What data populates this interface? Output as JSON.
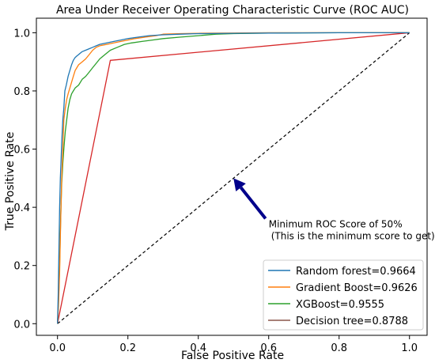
{
  "chart_data": {
    "type": "line",
    "title": "Area Under Receiver Operating Characteristic Curve (ROC AUC)",
    "xlabel": "False Positive Rate",
    "ylabel": "True Positive Rate",
    "xlim": [
      -0.06,
      1.05
    ],
    "ylim": [
      -0.04,
      1.05
    ],
    "xticks": [
      0.0,
      0.2,
      0.4,
      0.6,
      0.8,
      1.0
    ],
    "xtick_labels": [
      "0.0",
      "0.2",
      "0.4",
      "0.6",
      "0.8",
      "1.0"
    ],
    "yticks": [
      0.0,
      0.2,
      0.4,
      0.6,
      0.8,
      1.0
    ],
    "ytick_labels": [
      "0.0",
      "0.2",
      "0.4",
      "0.6",
      "0.8",
      "1.0"
    ],
    "grid": false,
    "legend_position": "bottom-right",
    "series": [
      {
        "name": "Random forest=0.9664",
        "color": "#1f77b4",
        "x": [
          0.0,
          0.002,
          0.004,
          0.006,
          0.008,
          0.01,
          0.012,
          0.015,
          0.018,
          0.021,
          0.025,
          0.03,
          0.035,
          0.04,
          0.045,
          0.05,
          0.055,
          0.06,
          0.065,
          0.07,
          0.08,
          0.09,
          0.1,
          0.11,
          0.12,
          0.14,
          0.16,
          0.18,
          0.2,
          0.23,
          0.26,
          0.3,
          0.35,
          0.4,
          0.5,
          0.6,
          0.8,
          1.0
        ],
        "y": [
          0.0,
          0.1,
          0.25,
          0.4,
          0.5,
          0.56,
          0.62,
          0.7,
          0.74,
          0.8,
          0.82,
          0.85,
          0.87,
          0.89,
          0.905,
          0.915,
          0.92,
          0.925,
          0.93,
          0.935,
          0.94,
          0.945,
          0.95,
          0.955,
          0.96,
          0.965,
          0.97,
          0.975,
          0.98,
          0.985,
          0.99,
          0.993,
          0.995,
          0.997,
          0.998,
          0.999,
          1.0,
          1.0
        ]
      },
      {
        "name": "Gradient Boost=0.9626",
        "color": "#ff7f0e",
        "x": [
          0.0,
          0.003,
          0.006,
          0.009,
          0.012,
          0.015,
          0.018,
          0.022,
          0.026,
          0.03,
          0.035,
          0.04,
          0.045,
          0.05,
          0.055,
          0.06,
          0.07,
          0.08,
          0.09,
          0.1,
          0.11,
          0.12,
          0.14,
          0.16,
          0.18,
          0.2,
          0.22,
          0.25,
          0.28,
          0.3,
          0.35,
          0.4,
          0.5,
          0.6,
          0.8,
          1.0
        ],
        "y": [
          0.0,
          0.06,
          0.18,
          0.35,
          0.5,
          0.6,
          0.7,
          0.74,
          0.77,
          0.79,
          0.81,
          0.83,
          0.85,
          0.87,
          0.88,
          0.89,
          0.9,
          0.91,
          0.925,
          0.94,
          0.95,
          0.955,
          0.96,
          0.965,
          0.97,
          0.975,
          0.98,
          0.985,
          0.99,
          0.995,
          0.997,
          0.998,
          0.999,
          1.0,
          1.0,
          1.0
        ]
      },
      {
        "name": "XGBoost=0.9555",
        "color": "#2ca02c",
        "x": [
          0.0,
          0.003,
          0.006,
          0.009,
          0.012,
          0.015,
          0.018,
          0.022,
          0.026,
          0.03,
          0.035,
          0.04,
          0.045,
          0.05,
          0.06,
          0.07,
          0.08,
          0.09,
          0.1,
          0.11,
          0.12,
          0.13,
          0.14,
          0.15,
          0.17,
          0.19,
          0.21,
          0.24,
          0.27,
          0.3,
          0.35,
          0.4,
          0.45,
          0.5,
          0.6,
          0.8,
          1.0
        ],
        "y": [
          0.0,
          0.08,
          0.2,
          0.36,
          0.48,
          0.55,
          0.6,
          0.66,
          0.7,
          0.74,
          0.77,
          0.79,
          0.8,
          0.81,
          0.82,
          0.84,
          0.85,
          0.865,
          0.88,
          0.895,
          0.91,
          0.92,
          0.93,
          0.94,
          0.95,
          0.96,
          0.965,
          0.97,
          0.975,
          0.98,
          0.985,
          0.99,
          0.995,
          0.997,
          0.999,
          1.0,
          1.0
        ]
      },
      {
        "name": "Decision tree=0.8788",
        "color": "#d62728",
        "legend_color": "#8c564b",
        "x": [
          0.0,
          0.15,
          1.0
        ],
        "y": [
          0.0,
          0.905,
          1.0
        ]
      }
    ],
    "baseline": {
      "x": [
        0.0,
        1.0
      ],
      "y": [
        0.0,
        1.0
      ],
      "color": "#000000"
    },
    "annotation": {
      "lines": [
        "Minimum ROC Score of 50%",
        "(This is the minimum score to get)"
      ],
      "arrow_tip": [
        0.5,
        0.5
      ],
      "text_at": [
        0.6,
        0.345
      ],
      "arrow_color": "#00008b"
    }
  }
}
